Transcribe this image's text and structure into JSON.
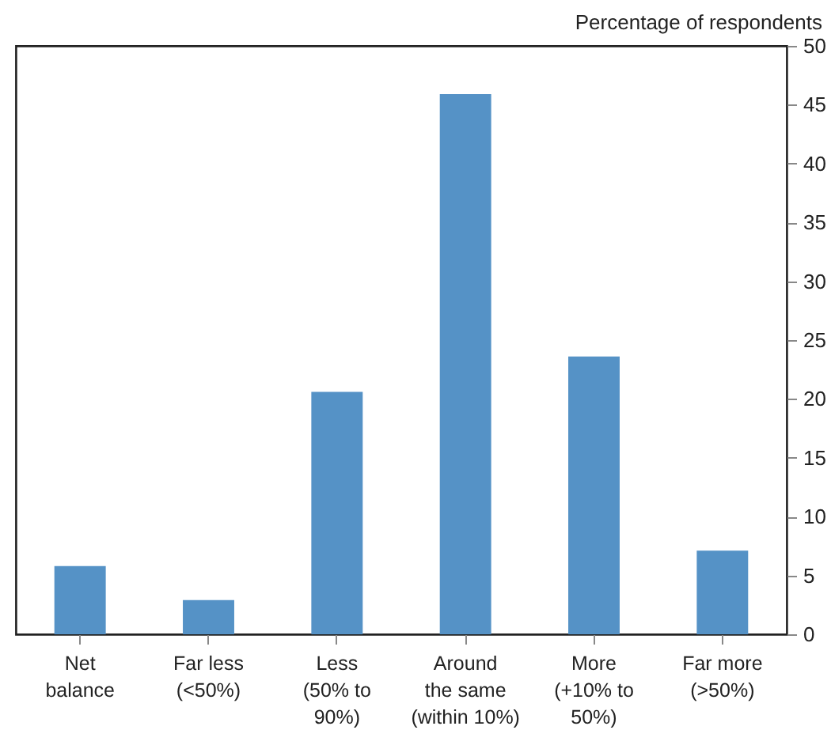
{
  "chart_data": {
    "type": "bar",
    "ylabel": "Percentage of respondents",
    "categories": [
      "Net\nbalance",
      "Far less\n(<50%)",
      "Less\n(50% to\n90%)",
      "Around\nthe same\n(within 10%)",
      "More\n(+10% to\n50%)",
      "Far more\n(>50%)"
    ],
    "values": [
      5.8,
      2.9,
      20.6,
      45.9,
      23.6,
      7.1
    ],
    "color": "#5592c6",
    "ylim": [
      0,
      50
    ],
    "yticks": [
      0,
      5,
      10,
      15,
      20,
      25,
      30,
      35,
      40,
      45,
      50
    ],
    "grid": false
  }
}
